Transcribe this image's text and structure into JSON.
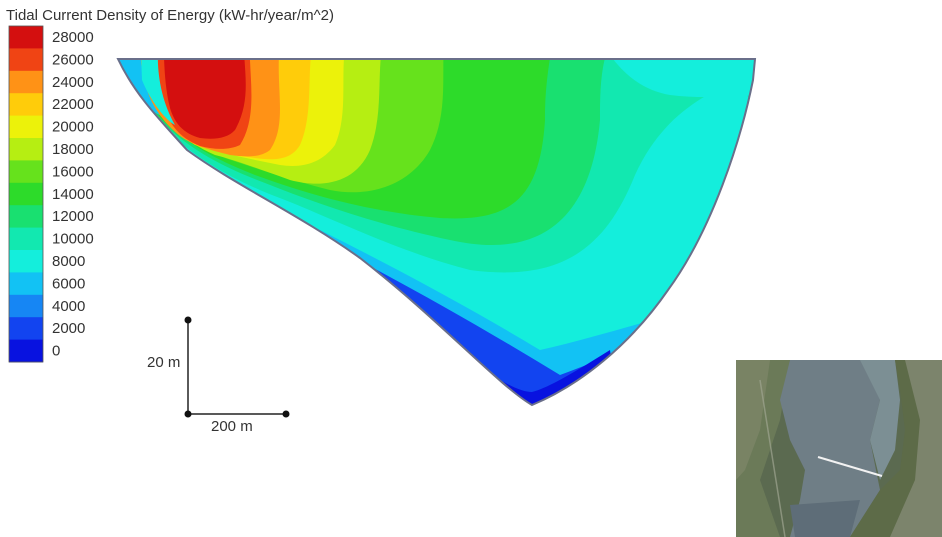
{
  "chart_data": {
    "type": "heatmap",
    "title": "Tidal Current Density of Energy (kW-hr/year/m^2)",
    "colorbar": {
      "levels": [
        {
          "value": 28000,
          "label": "28000",
          "color": "#d40f0f"
        },
        {
          "value": 26000,
          "label": "26000",
          "color": "#f04414"
        },
        {
          "value": 24000,
          "label": "24000",
          "color": "#ff9216"
        },
        {
          "value": 22000,
          "label": "22000",
          "color": "#ffcc0a"
        },
        {
          "value": 20000,
          "label": "20000",
          "color": "#ecf20a"
        },
        {
          "value": 18000,
          "label": "18000",
          "color": "#b6ee12"
        },
        {
          "value": 16000,
          "label": "16000",
          "color": "#66e21c"
        },
        {
          "value": 14000,
          "label": "14000",
          "color": "#2ddb2a"
        },
        {
          "value": 12000,
          "label": "12000",
          "color": "#19e070"
        },
        {
          "value": 10000,
          "label": "10000",
          "color": "#12e8b0"
        },
        {
          "value": 8000,
          "label": "8000",
          "color": "#14eedc"
        },
        {
          "value": 6000,
          "label": "6000",
          "color": "#12c2f4"
        },
        {
          "value": 4000,
          "label": "4000",
          "color": "#1686f4"
        },
        {
          "value": 2000,
          "label": "2000",
          "color": "#1244f0"
        },
        {
          "value": 0,
          "label": "0",
          "color": "#0812e0"
        }
      ]
    },
    "scale_bar": {
      "vertical_label": "20 m",
      "horizontal_label": "200 m"
    },
    "outline_color": "#6a6f8a"
  },
  "inset": {
    "kind": "aerial-photo"
  }
}
